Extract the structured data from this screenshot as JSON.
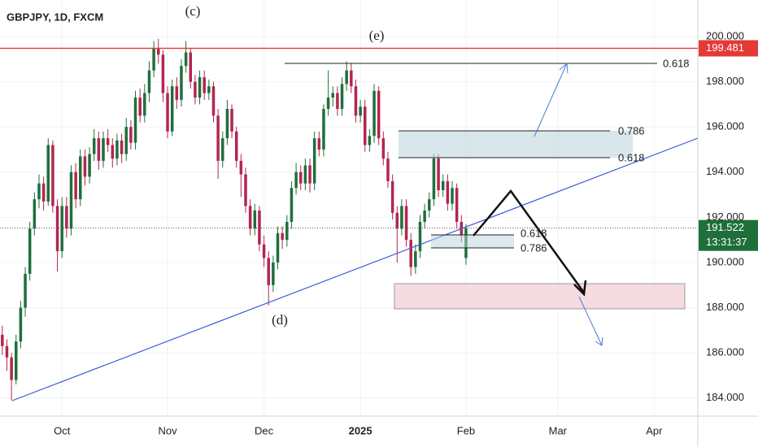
{
  "chart_data": {
    "type": "candlestick",
    "title": "GBPJPY, 1D, FXCM",
    "up_color": "#1f6f3b",
    "down_color": "#b32550",
    "grid": true,
    "xlim": [
      -0.5,
      151.5
    ],
    "xticks": [
      {
        "value": 13,
        "label": "Oct"
      },
      {
        "value": 36,
        "label": "Nov"
      },
      {
        "value": 57,
        "label": "Dec"
      },
      {
        "value": 78,
        "label": "2025"
      },
      {
        "value": 101,
        "label": "Feb"
      },
      {
        "value": 121,
        "label": "Mar"
      },
      {
        "value": 142,
        "label": "Apr"
      }
    ],
    "ylim": [
      183.2,
      201.62
    ],
    "yticks": [
      {
        "value": 184,
        "label": "184.000"
      },
      {
        "value": 186,
        "label": "186.000"
      },
      {
        "value": 188,
        "label": "188.000"
      },
      {
        "value": 190,
        "label": "190.000"
      },
      {
        "value": 192,
        "label": "192.000"
      },
      {
        "value": 194,
        "label": "194.000"
      },
      {
        "value": 196,
        "label": "196.000"
      },
      {
        "value": 198,
        "label": "198.000"
      },
      {
        "value": 200,
        "label": "200.000"
      }
    ],
    "level": {
      "value": 199.481,
      "label": "199.481",
      "color": "#e53935"
    },
    "last_price": {
      "value": 191.522,
      "label": "191.522",
      "countdown": "13:31:37"
    },
    "annotations": [
      "(c)",
      "(e)",
      "(d)",
      "0.618",
      "0.786",
      "0.618",
      "0.618",
      "0.786"
    ],
    "ohlc": [
      [
        186.8,
        187.2,
        185.9,
        186.3
      ],
      [
        186.3,
        186.6,
        185.2,
        185.8
      ],
      [
        185.8,
        186.0,
        183.9,
        184.8
      ],
      [
        184.8,
        186.8,
        184.6,
        186.5
      ],
      [
        186.5,
        188.3,
        186.2,
        188
      ],
      [
        188,
        189.8,
        187.6,
        189.5
      ],
      [
        189.5,
        191.8,
        189.2,
        191.5
      ],
      [
        191.5,
        193.1,
        191.2,
        192.8
      ],
      [
        192.8,
        193.9,
        192.4,
        193.5
      ],
      [
        193.5,
        193.8,
        192.3,
        192.7
      ],
      [
        192.7,
        195.5,
        192.5,
        195.2
      ],
      [
        195.2,
        195.4,
        192.2,
        192.5
      ],
      [
        192.5,
        192.8,
        189.6,
        190.5
      ],
      [
        190.5,
        192.9,
        190.2,
        192.5
      ],
      [
        192.5,
        192.9,
        191.1,
        191.5
      ],
      [
        191.5,
        194.3,
        191.2,
        194
      ],
      [
        194,
        194.4,
        192.4,
        192.8
      ],
      [
        192.8,
        195,
        192.5,
        194.7
      ],
      [
        194.7,
        195,
        193.4,
        193.8
      ],
      [
        193.8,
        195.1,
        193.5,
        194.8
      ],
      [
        194.8,
        195.9,
        194.5,
        195.5
      ],
      [
        195.5,
        195.8,
        194.1,
        194.5
      ],
      [
        194.5,
        195.8,
        194.2,
        195.5
      ],
      [
        195.5,
        195.9,
        194.9,
        195.2
      ],
      [
        195.2,
        195.5,
        194.2,
        194.6
      ],
      [
        194.6,
        195.7,
        194.3,
        195.4
      ],
      [
        195.4,
        195.7,
        194.4,
        194.8
      ],
      [
        194.8,
        196.4,
        194.5,
        196
      ],
      [
        196,
        196.3,
        195,
        195.3
      ],
      [
        195.3,
        197.6,
        195,
        197.3
      ],
      [
        197.3,
        197.7,
        196.2,
        196.5
      ],
      [
        196.5,
        197.9,
        196.2,
        197.5
      ],
      [
        197.5,
        198.9,
        197.1,
        198.5
      ],
      [
        198.5,
        199.8,
        198.2,
        199.5
      ],
      [
        199.5,
        199.9,
        198.8,
        199.2
      ],
      [
        199.2,
        199.4,
        197.1,
        197.5
      ],
      [
        197.5,
        197.8,
        195.5,
        195.8
      ],
      [
        195.8,
        198.1,
        195.6,
        197.8
      ],
      [
        197.8,
        198.2,
        196.8,
        197.2
      ],
      [
        197.2,
        199,
        196.9,
        198.7
      ],
      [
        198.7,
        199.8,
        198.4,
        199.3
      ],
      [
        199.3,
        199.5,
        197.7,
        198
      ],
      [
        198,
        198.3,
        197,
        197.3
      ],
      [
        197.3,
        198.5,
        197,
        198.2
      ],
      [
        198.2,
        198.5,
        197.2,
        197.5
      ],
      [
        197.5,
        198.1,
        197.2,
        197.8
      ],
      [
        197.8,
        198,
        196.2,
        196.5
      ],
      [
        196.5,
        196.8,
        193.7,
        194.5
      ],
      [
        194.5,
        195.8,
        194.2,
        195.5
      ],
      [
        195.5,
        197.2,
        195.2,
        196.8
      ],
      [
        196.8,
        197,
        195.5,
        195.8
      ],
      [
        195.8,
        196,
        194.2,
        194.5
      ],
      [
        194.5,
        194.8,
        192.9,
        193.9
      ],
      [
        193.9,
        194.2,
        192.2,
        192.5
      ],
      [
        192.5,
        192.8,
        191.2,
        191.5
      ],
      [
        191.5,
        192.6,
        191.2,
        192.3
      ],
      [
        192.3,
        192.5,
        190.5,
        190.8
      ],
      [
        190.8,
        191.2,
        189.8,
        190.2
      ],
      [
        190.2,
        190.5,
        188.1,
        189
      ],
      [
        189,
        190.3,
        188.7,
        190
      ],
      [
        190,
        191.6,
        189.7,
        191.3
      ],
      [
        191.3,
        191.6,
        190.6,
        191
      ],
      [
        191,
        192.1,
        190.7,
        191.8
      ],
      [
        191.8,
        193.6,
        191.5,
        193.3
      ],
      [
        193.3,
        194.4,
        193,
        194
      ],
      [
        194,
        194.3,
        193.2,
        193.5
      ],
      [
        193.5,
        194.6,
        193.2,
        194.3
      ],
      [
        194.3,
        194.6,
        193.1,
        193.5
      ],
      [
        193.5,
        195.8,
        193.2,
        195.5
      ],
      [
        195.5,
        195.8,
        194.7,
        195
      ],
      [
        195,
        197,
        194.7,
        196.8
      ],
      [
        196.8,
        198.5,
        196.5,
        197.3
      ],
      [
        197.3,
        197.8,
        196.9,
        197.5
      ],
      [
        197.5,
        197.8,
        196.5,
        196.8
      ],
      [
        196.8,
        198.2,
        196.5,
        197.9
      ],
      [
        197.9,
        198.9,
        197.6,
        198.5
      ],
      [
        198.5,
        198.8,
        197.5,
        197.8
      ],
      [
        197.8,
        198.1,
        196.2,
        196.5
      ],
      [
        196.5,
        197.2,
        196.2,
        196.9
      ],
      [
        196.9,
        197.2,
        194.9,
        195.2
      ],
      [
        195.2,
        195.9,
        194.9,
        195.6
      ],
      [
        195.6,
        197.9,
        195.3,
        197.6
      ],
      [
        197.6,
        197.8,
        195.2,
        195.5
      ],
      [
        195.5,
        195.8,
        194.3,
        194.6
      ],
      [
        194.6,
        194.9,
        193.3,
        193.6
      ],
      [
        193.6,
        193.9,
        191.9,
        192.2
      ],
      [
        192.2,
        192.5,
        190,
        191.5
      ],
      [
        191.5,
        192.8,
        191.2,
        192.5
      ],
      [
        192.5,
        192.8,
        190.7,
        191
      ],
      [
        191,
        191.3,
        189.4,
        189.8
      ],
      [
        189.8,
        190.8,
        189.5,
        190.5
      ],
      [
        190.5,
        192.1,
        190.2,
        191.8
      ],
      [
        191.8,
        192.6,
        191.5,
        192.3
      ],
      [
        192.3,
        193.1,
        192,
        192.8
      ],
      [
        192.8,
        194.8,
        192.5,
        194.6
      ],
      [
        194.6,
        194.8,
        192.9,
        193.2
      ],
      [
        193.2,
        193.9,
        192.9,
        193.6
      ],
      [
        193.6,
        193.9,
        192.3,
        192.6
      ],
      [
        192.6,
        193.6,
        192.3,
        193.3
      ],
      [
        193.3,
        193.5,
        191.5,
        191.8
      ],
      [
        191.8,
        192.1,
        190.9,
        191.2
      ],
      [
        190.2,
        191.7,
        189.9,
        191.522
      ]
    ]
  }
}
